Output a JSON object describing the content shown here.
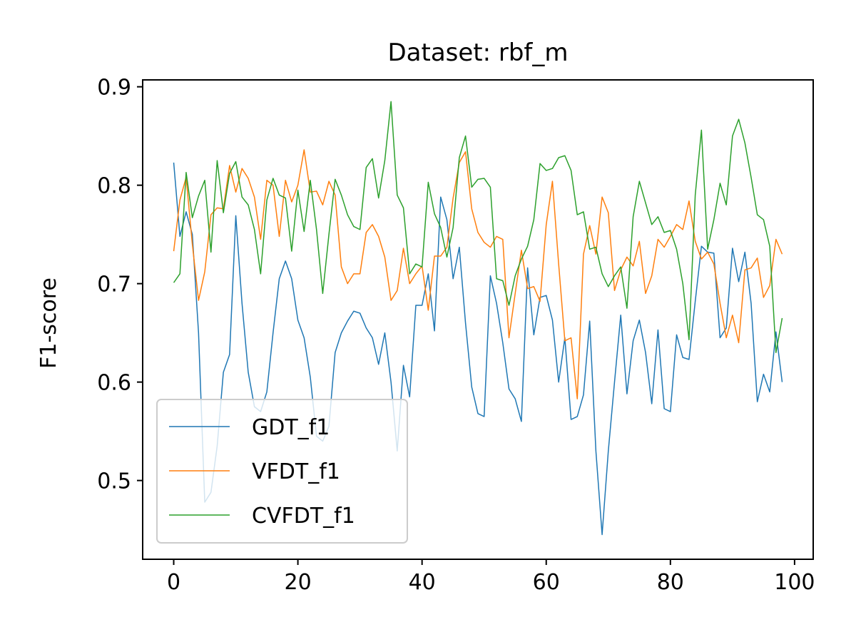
{
  "chart_data": {
    "type": "line",
    "title": "Dataset: rbf_m",
    "xlabel": "",
    "ylabel": "F1-score",
    "xlim": [
      -5.0,
      103.0
    ],
    "ylim": [
      0.42,
      0.907
    ],
    "xticks": [
      0,
      20,
      40,
      60,
      80,
      100
    ],
    "yticks": [
      0.5,
      0.6,
      0.7,
      0.8,
      0.9
    ],
    "xtick_labels": [
      "0",
      "20",
      "40",
      "60",
      "80",
      "100"
    ],
    "ytick_labels": [
      "0.5",
      "0.6",
      "0.7",
      "0.8",
      "0.9"
    ],
    "grid": false,
    "legend_position": "lower-left",
    "x": [
      0,
      1,
      2,
      3,
      4,
      5,
      6,
      7,
      8,
      9,
      10,
      11,
      12,
      13,
      14,
      15,
      16,
      17,
      18,
      19,
      20,
      21,
      22,
      23,
      24,
      25,
      26,
      27,
      28,
      29,
      30,
      31,
      32,
      33,
      34,
      35,
      36,
      37,
      38,
      39,
      40,
      41,
      42,
      43,
      44,
      45,
      46,
      47,
      48,
      49,
      50,
      51,
      52,
      53,
      54,
      55,
      56,
      57,
      58,
      59,
      60,
      61,
      62,
      63,
      64,
      65,
      66,
      67,
      68,
      69,
      70,
      71,
      72,
      73,
      74,
      75,
      76,
      77,
      78,
      79,
      80,
      81,
      82,
      83,
      84,
      85,
      86,
      87,
      88,
      89,
      90,
      91,
      92,
      93,
      94,
      95,
      96,
      97,
      98
    ],
    "series": [
      {
        "name": "GDT_f1",
        "color": "#1f77b4",
        "values": [
          0.823,
          0.748,
          0.773,
          0.75,
          0.65,
          0.478,
          0.488,
          0.535,
          0.61,
          0.628,
          0.769,
          0.68,
          0.61,
          0.575,
          0.57,
          0.59,
          0.65,
          0.705,
          0.723,
          0.705,
          0.663,
          0.645,
          0.605,
          0.545,
          0.54,
          0.555,
          0.63,
          0.65,
          0.662,
          0.672,
          0.67,
          0.655,
          0.645,
          0.618,
          0.65,
          0.6,
          0.53,
          0.617,
          0.585,
          0.678,
          0.678,
          0.71,
          0.652,
          0.788,
          0.765,
          0.705,
          0.737,
          0.66,
          0.595,
          0.568,
          0.565,
          0.708,
          0.68,
          0.64,
          0.593,
          0.583,
          0.56,
          0.716,
          0.648,
          0.686,
          0.688,
          0.663,
          0.6,
          0.645,
          0.562,
          0.565,
          0.587,
          0.662,
          0.53,
          0.445,
          0.53,
          0.6,
          0.668,
          0.588,
          0.642,
          0.663,
          0.63,
          0.578,
          0.653,
          0.573,
          0.57,
          0.648,
          0.625,
          0.623,
          0.682,
          0.738,
          0.732,
          0.731,
          0.645,
          0.655,
          0.736,
          0.702,
          0.732,
          0.68,
          0.58,
          0.608,
          0.59,
          0.651,
          0.6
        ]
      },
      {
        "name": "VFDT_f1",
        "color": "#ff7f0e",
        "values": [
          0.733,
          0.785,
          0.808,
          0.74,
          0.683,
          0.712,
          0.77,
          0.777,
          0.776,
          0.82,
          0.793,
          0.817,
          0.807,
          0.788,
          0.745,
          0.805,
          0.8,
          0.748,
          0.805,
          0.783,
          0.8,
          0.836,
          0.793,
          0.794,
          0.78,
          0.804,
          0.79,
          0.717,
          0.7,
          0.71,
          0.71,
          0.752,
          0.76,
          0.748,
          0.727,
          0.683,
          0.693,
          0.736,
          0.7,
          0.71,
          0.718,
          0.673,
          0.728,
          0.728,
          0.737,
          0.787,
          0.823,
          0.834,
          0.776,
          0.752,
          0.742,
          0.737,
          0.748,
          0.745,
          0.645,
          0.69,
          0.734,
          0.695,
          0.697,
          0.682,
          0.76,
          0.804,
          0.72,
          0.642,
          0.645,
          0.583,
          0.73,
          0.759,
          0.73,
          0.788,
          0.772,
          0.693,
          0.714,
          0.727,
          0.718,
          0.743,
          0.69,
          0.708,
          0.745,
          0.737,
          0.748,
          0.76,
          0.755,
          0.784,
          0.743,
          0.725,
          0.732,
          0.72,
          0.68,
          0.645,
          0.668,
          0.64,
          0.714,
          0.716,
          0.726,
          0.686,
          0.698,
          0.745,
          0.73
        ]
      },
      {
        "name": "CVFDT_f1",
        "color": "#2ca02c",
        "values": [
          0.701,
          0.71,
          0.813,
          0.767,
          0.789,
          0.805,
          0.732,
          0.825,
          0.772,
          0.812,
          0.824,
          0.788,
          0.78,
          0.755,
          0.71,
          0.785,
          0.807,
          0.79,
          0.787,
          0.733,
          0.795,
          0.753,
          0.805,
          0.755,
          0.69,
          0.75,
          0.806,
          0.79,
          0.77,
          0.758,
          0.755,
          0.818,
          0.827,
          0.787,
          0.825,
          0.885,
          0.79,
          0.777,
          0.71,
          0.72,
          0.717,
          0.803,
          0.771,
          0.757,
          0.727,
          0.757,
          0.828,
          0.85,
          0.798,
          0.806,
          0.807,
          0.798,
          0.705,
          0.703,
          0.678,
          0.708,
          0.725,
          0.738,
          0.765,
          0.822,
          0.815,
          0.817,
          0.828,
          0.83,
          0.815,
          0.77,
          0.773,
          0.735,
          0.737,
          0.71,
          0.697,
          0.708,
          0.717,
          0.675,
          0.768,
          0.804,
          0.782,
          0.76,
          0.768,
          0.752,
          0.754,
          0.735,
          0.7,
          0.643,
          0.79,
          0.856,
          0.735,
          0.765,
          0.802,
          0.78,
          0.85,
          0.867,
          0.843,
          0.808,
          0.77,
          0.765,
          0.738,
          0.63,
          0.665
        ]
      }
    ]
  }
}
